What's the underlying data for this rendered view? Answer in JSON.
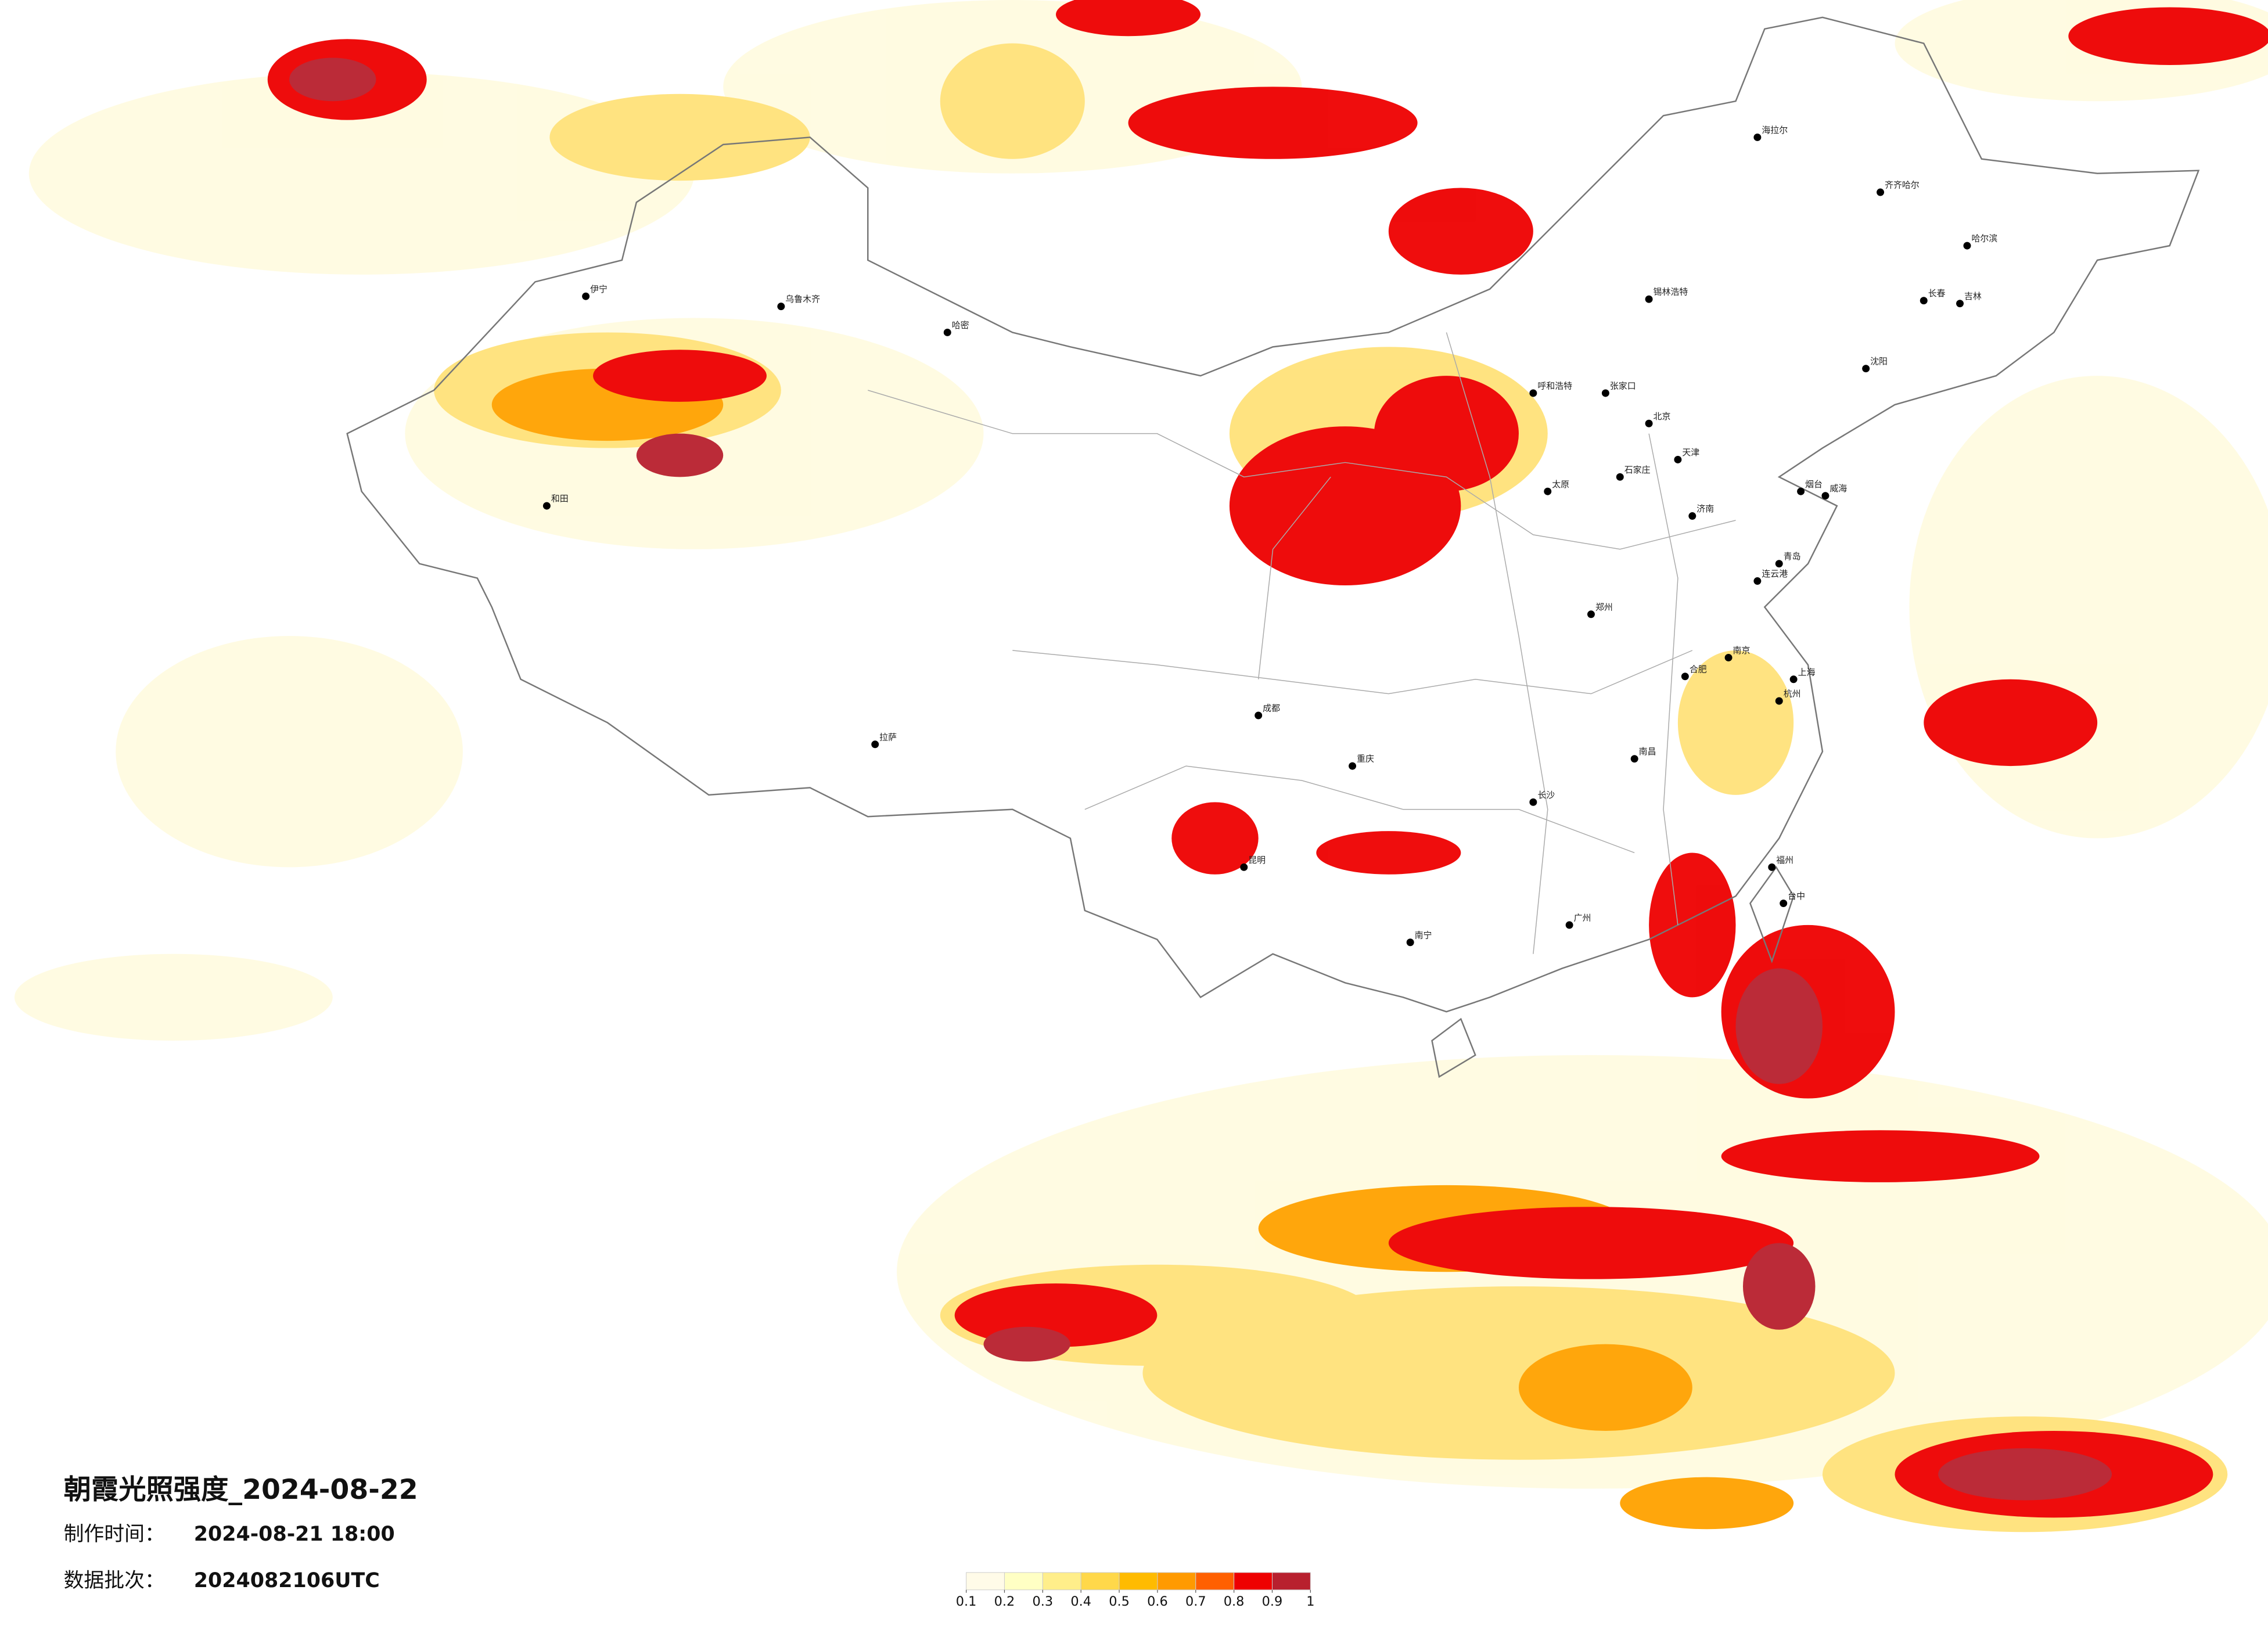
{
  "header": {
    "title": "朝霞光照强度_2024-08-22"
  },
  "info": {
    "made_label": "制作时间：",
    "made_value": "2024-08-21 18:00",
    "batch_label": "数据批次：",
    "batch_value": "2024082106UTC"
  },
  "legend": {
    "ticks": [
      0.1,
      0.2,
      0.3,
      0.4,
      0.5,
      0.6,
      0.7,
      0.8,
      0.9,
      1
    ],
    "colors": [
      "#fffbe8",
      "#ffffc4",
      "#ffee8a",
      "#ffd84a",
      "#ffbb00",
      "#ff9a00",
      "#ff6000",
      "#ee0000",
      "#b8202e"
    ]
  },
  "cities": [
    "海拉尔",
    "齐齐哈尔",
    "哈尔滨",
    "长春",
    "吉林",
    "沈阳",
    "锡林浩特",
    "呼和浩特",
    "张家口",
    "北京",
    "天津",
    "石家庄",
    "太原",
    "济南",
    "青岛",
    "烟台",
    "威海",
    "连云港",
    "郑州",
    "南京",
    "合肥",
    "上海",
    "杭州",
    "南昌",
    "长沙",
    "福州",
    "台中",
    "广州",
    "南宁",
    "成都",
    "重庆",
    "昆明",
    "拉萨",
    "乌鲁木齐",
    "伊宁",
    "哈密",
    "和田"
  ]
}
